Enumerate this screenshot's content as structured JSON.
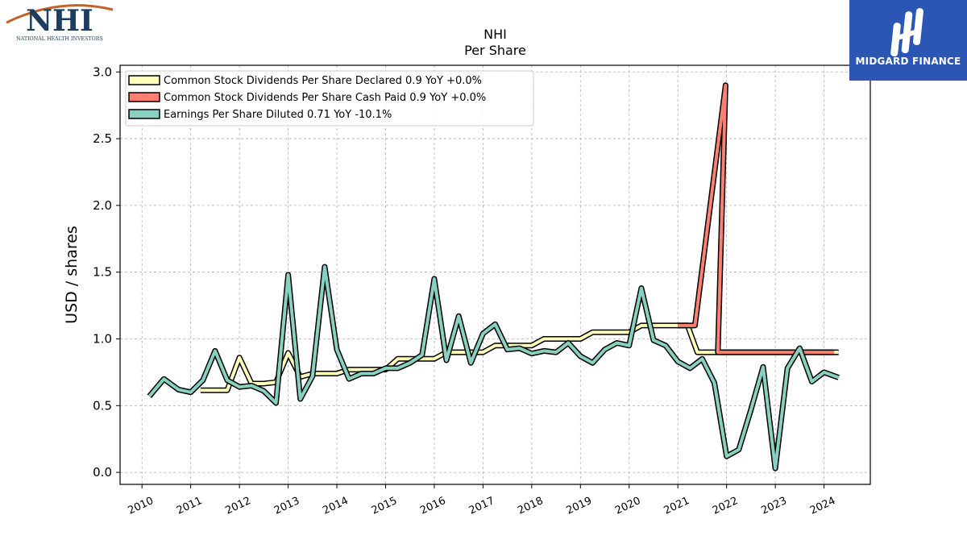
{
  "logos": {
    "left": {
      "text": "NHI",
      "subtext": "NATIONAL HEALTH INVESTORS"
    },
    "right": {
      "text": "MIDGARD FINANCE"
    }
  },
  "chart_data": {
    "type": "line",
    "title": "NHI",
    "subtitle": "Per  Share",
    "xlabel": "",
    "ylabel": "USD / shares",
    "xlim": [
      2009.55,
      2024.95
    ],
    "ylim": [
      -0.09,
      3.05
    ],
    "yticks": [
      0.0,
      0.5,
      1.0,
      1.5,
      2.0,
      2.5,
      3.0
    ],
    "ytick_labels": [
      "0.0",
      "0.5",
      "1.0",
      "1.5",
      "2.0",
      "2.5",
      "3.0"
    ],
    "xticks": [
      2010,
      2011,
      2012,
      2013,
      2014,
      2015,
      2016,
      2017,
      2018,
      2019,
      2020,
      2021,
      2022,
      2023,
      2024
    ],
    "xtick_labels": [
      "2010",
      "2011",
      "2012",
      "2013",
      "2014",
      "2015",
      "2016",
      "2017",
      "2018",
      "2019",
      "2020",
      "2021",
      "2022",
      "2023",
      "2024"
    ],
    "grid": true,
    "legend_position": "top-left",
    "series": [
      {
        "name": "Common Stock Dividends Per Share Declared  0.9 YoY +0.0%",
        "color": "#ffffbb",
        "x": [
          2011.2,
          2011.45,
          2011.75,
          2012.0,
          2012.25,
          2012.5,
          2012.75,
          2013.0,
          2013.25,
          2013.5,
          2013.75,
          2014.0,
          2014.25,
          2014.5,
          2014.75,
          2015.0,
          2015.25,
          2015.5,
          2015.75,
          2016.0,
          2016.25,
          2016.5,
          2016.75,
          2017.0,
          2017.25,
          2017.5,
          2017.75,
          2018.0,
          2018.25,
          2018.5,
          2018.75,
          2019.0,
          2019.25,
          2019.5,
          2019.75,
          2020.0,
          2020.25,
          2020.5,
          2020.75,
          2021.0,
          2021.2,
          2021.4,
          2021.6,
          2021.8,
          2022.0,
          2022.25,
          2022.5,
          2022.75,
          2023.0,
          2023.25,
          2023.5,
          2023.75,
          2024.0,
          2024.3
        ],
        "values": [
          0.615,
          0.615,
          0.615,
          0.86,
          0.665,
          0.665,
          0.675,
          0.895,
          0.715,
          0.74,
          0.74,
          0.74,
          0.77,
          0.77,
          0.77,
          0.77,
          0.85,
          0.85,
          0.85,
          0.85,
          0.9,
          0.9,
          0.9,
          0.9,
          0.95,
          0.95,
          0.95,
          0.95,
          1.0,
          1.0,
          1.0,
          1.0,
          1.05,
          1.05,
          1.05,
          1.05,
          1.1,
          1.1,
          1.1,
          1.1,
          1.1,
          0.9,
          0.9,
          0.9,
          0.9,
          0.9,
          0.9,
          0.9,
          0.9,
          0.9,
          0.9,
          0.9,
          0.9,
          0.9
        ]
      },
      {
        "name": "Common Stock Dividends Per Share Cash Paid  0.9 YoY +0.0%",
        "color": "#fa8072",
        "x": [
          2021.0,
          2021.35,
          2021.98,
          2021.82,
          2022.25,
          2022.5,
          2022.75,
          2023.0,
          2023.25,
          2023.5,
          2023.75,
          2024.0,
          2024.2
        ],
        "values": [
          1.1,
          1.1,
          2.9,
          0.9,
          0.9,
          0.9,
          0.9,
          0.9,
          0.9,
          0.9,
          0.9,
          0.9,
          0.9
        ]
      },
      {
        "name": "Earnings Per Share Diluted  0.71 YoY -10.1%",
        "color": "#88d0c0",
        "x": [
          2010.15,
          2010.45,
          2010.75,
          2011.0,
          2011.25,
          2011.5,
          2011.75,
          2012.0,
          2012.25,
          2012.5,
          2012.75,
          2013.0,
          2013.25,
          2013.5,
          2013.75,
          2014.0,
          2014.25,
          2014.5,
          2014.75,
          2015.0,
          2015.25,
          2015.5,
          2015.75,
          2016.0,
          2016.25,
          2016.5,
          2016.75,
          2017.0,
          2017.25,
          2017.5,
          2017.75,
          2018.0,
          2018.25,
          2018.5,
          2018.75,
          2019.0,
          2019.25,
          2019.5,
          2019.75,
          2020.0,
          2020.25,
          2020.5,
          2020.75,
          2021.0,
          2021.25,
          2021.5,
          2021.75,
          2022.0,
          2022.25,
          2022.5,
          2022.75,
          2023.0,
          2023.25,
          2023.5,
          2023.75,
          2024.0,
          2024.3
        ],
        "values": [
          0.57,
          0.7,
          0.62,
          0.6,
          0.69,
          0.91,
          0.69,
          0.64,
          0.65,
          0.61,
          0.52,
          1.48,
          0.55,
          0.72,
          1.54,
          0.92,
          0.7,
          0.74,
          0.74,
          0.78,
          0.78,
          0.82,
          0.88,
          1.45,
          0.84,
          1.17,
          0.82,
          1.04,
          1.11,
          0.92,
          0.93,
          0.89,
          0.91,
          0.9,
          0.97,
          0.87,
          0.82,
          0.92,
          0.97,
          0.95,
          1.38,
          0.99,
          0.95,
          0.83,
          0.78,
          0.85,
          0.67,
          0.12,
          0.17,
          0.47,
          0.79,
          0.03,
          0.78,
          0.93,
          0.68,
          0.75,
          0.71
        ]
      }
    ]
  }
}
